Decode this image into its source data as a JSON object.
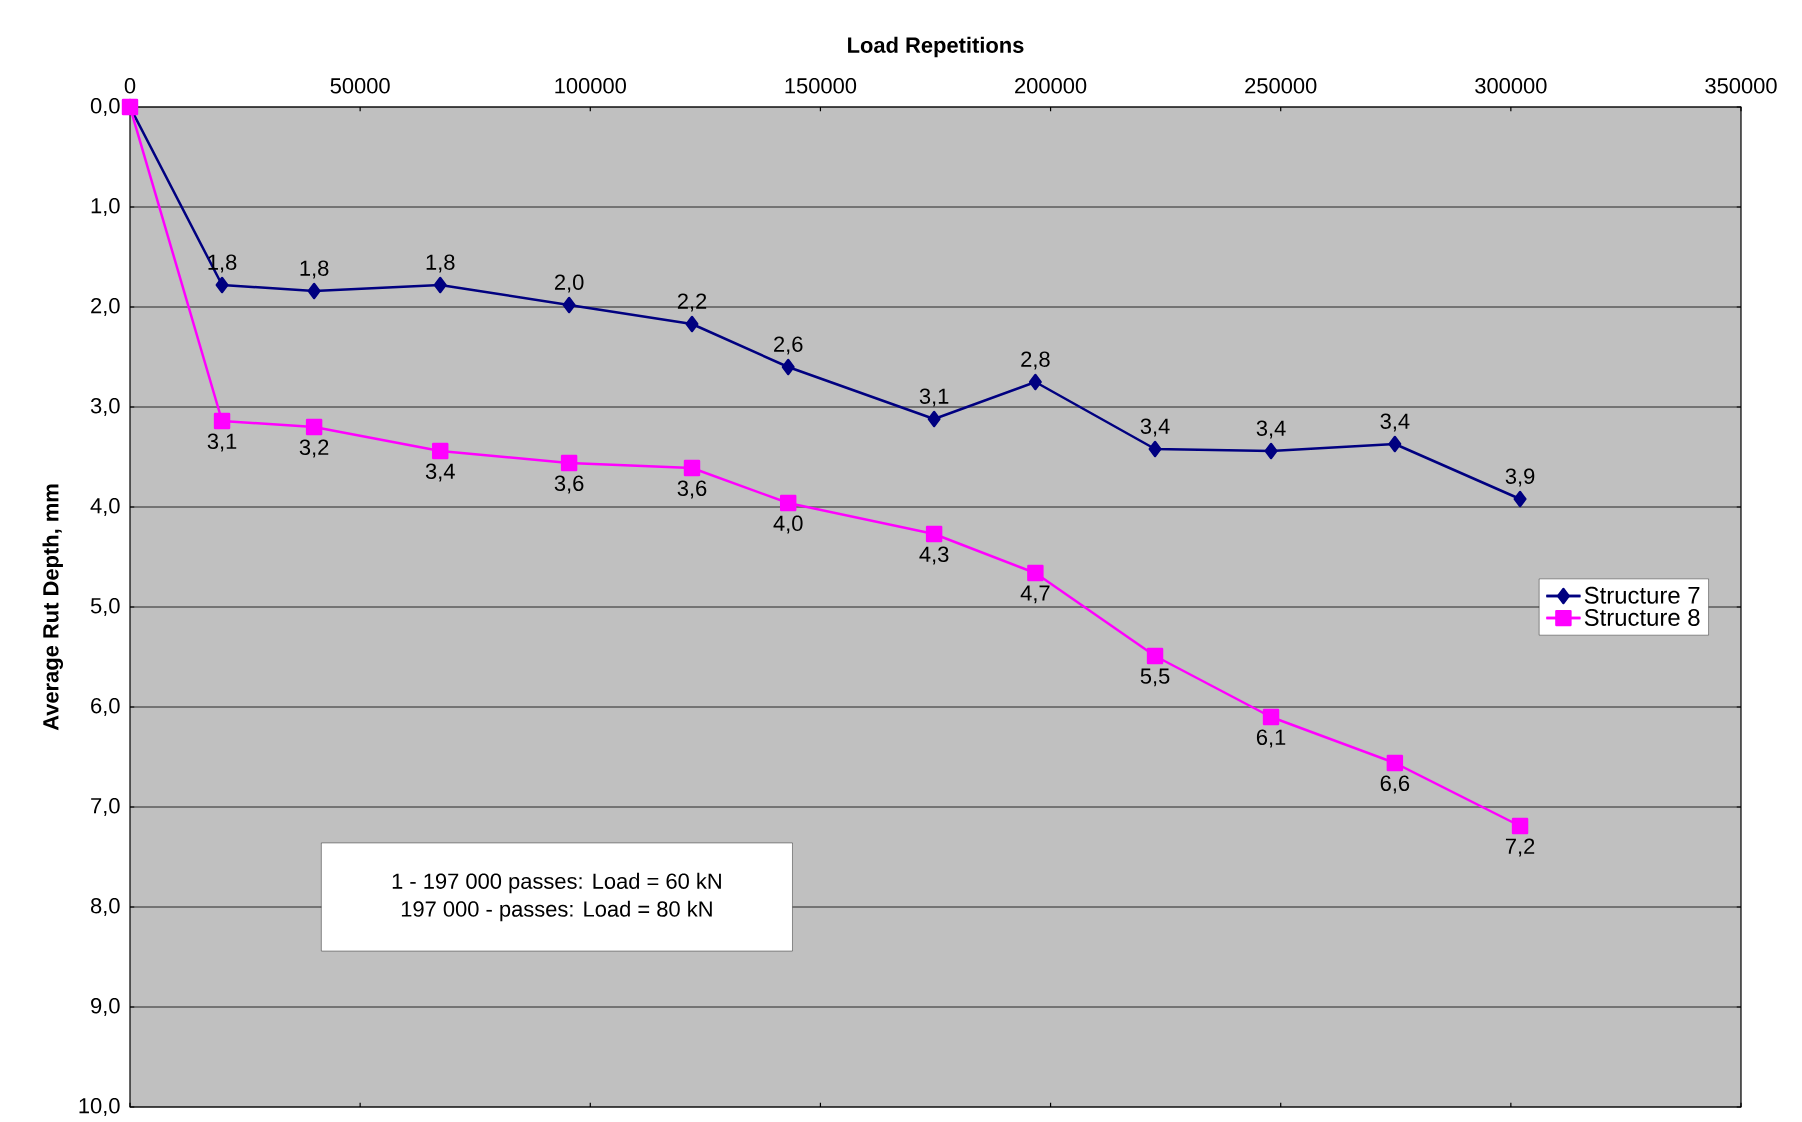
{
  "chart_data": {
    "type": "line",
    "xlabel": "Load Repetitions",
    "ylabel": "Average Rut Depth, mm",
    "xlim": [
      0,
      350000
    ],
    "xticks": [
      0,
      50000,
      100000,
      150000,
      200000,
      250000,
      300000,
      350000
    ],
    "ylim": [
      10,
      0
    ],
    "yticks": [
      {
        "value": 0,
        "label": "0,0"
      },
      {
        "value": 1,
        "label": "1,0"
      },
      {
        "value": 2,
        "label": "2,0"
      },
      {
        "value": 3,
        "label": "3,0"
      },
      {
        "value": 4,
        "label": "4,0"
      },
      {
        "value": 5,
        "label": "5,0"
      },
      {
        "value": 6,
        "label": "6,0"
      },
      {
        "value": 7,
        "label": "7,0"
      },
      {
        "value": 8,
        "label": "8,0"
      },
      {
        "value": 9,
        "label": "9,0"
      },
      {
        "value": 10,
        "label": "10,0"
      }
    ],
    "x": [
      0,
      20000,
      40000,
      67400,
      95400,
      122100,
      143000,
      174700,
      196700,
      222700,
      247900,
      274800,
      302000
    ],
    "grid": "y",
    "legend": "right",
    "line_style": "solid",
    "series": [
      {
        "name": "Structure 7",
        "color": "#000080",
        "marker": "diamond",
        "values": [
          0,
          1.78,
          1.84,
          1.78,
          1.98,
          2.17,
          2.6,
          3.12,
          2.75,
          3.42,
          3.44,
          3.37,
          3.92
        ],
        "value_labels": [
          null,
          "1,8",
          "1,8",
          "1,8",
          "2,0",
          "2,2",
          "2,6",
          "3,1",
          "2,8",
          "3,4",
          "3,4",
          "3,4",
          "3,9"
        ]
      },
      {
        "name": "Structure 8",
        "color": "#ff00ff",
        "marker": "square",
        "values": [
          0,
          3.14,
          3.2,
          3.44,
          3.56,
          3.61,
          3.96,
          4.27,
          4.66,
          5.49,
          6.1,
          6.56,
          7.19
        ],
        "value_labels": [
          null,
          "3,1",
          "3,2",
          "3,4",
          "3,6",
          "3,6",
          "4,0",
          "4,3",
          "4,7",
          "5,5",
          "6,1",
          "6,6",
          "7,2"
        ]
      }
    ],
    "annotations": [
      "1 - 197 000 passes: Load = 60 kN",
      "197 000 - passes: Load = 80 kN"
    ]
  }
}
